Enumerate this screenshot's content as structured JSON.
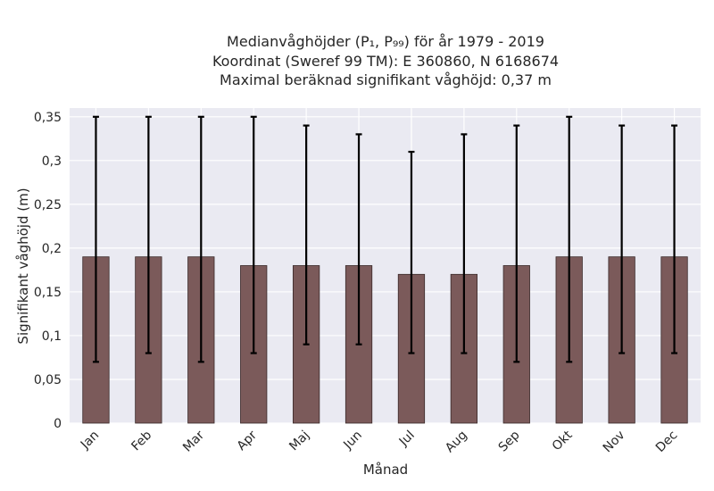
{
  "chart_data": {
    "type": "bar",
    "title_lines": [
      "Medianvåghöjder (P₁, P₉₉) för år 1979 - 2019",
      "Koordinat (Sweref 99 TM): E 360860, N 6168674",
      "Maximal beräknad signifikant våghöjd: 0,37 m"
    ],
    "xlabel": "Månad",
    "ylabel": "Signifikant våghöjd (m)",
    "categories": [
      "Jan",
      "Feb",
      "Mar",
      "Apr",
      "Maj",
      "Jun",
      "Jul",
      "Aug",
      "Sep",
      "Okt",
      "Nov",
      "Dec"
    ],
    "values": [
      0.19,
      0.19,
      0.19,
      0.18,
      0.18,
      0.18,
      0.17,
      0.17,
      0.18,
      0.19,
      0.19,
      0.19
    ],
    "p1": [
      0.07,
      0.08,
      0.07,
      0.08,
      0.09,
      0.09,
      0.08,
      0.08,
      0.07,
      0.07,
      0.08,
      0.08
    ],
    "p99": [
      0.35,
      0.35,
      0.35,
      0.35,
      0.34,
      0.33,
      0.31,
      0.33,
      0.34,
      0.35,
      0.34,
      0.34
    ],
    "yticks": [
      0,
      0.05,
      0.1,
      0.15,
      0.2,
      0.25,
      0.3,
      0.35
    ],
    "ytick_labels": [
      "0",
      "0,05",
      "0,1",
      "0,15",
      "0,2",
      "0,25",
      "0,3",
      "0,35"
    ],
    "ylim": [
      0,
      0.36
    ],
    "grid": true,
    "bar_color": "#7b5a5a",
    "background_color": "#eaeaf2"
  }
}
